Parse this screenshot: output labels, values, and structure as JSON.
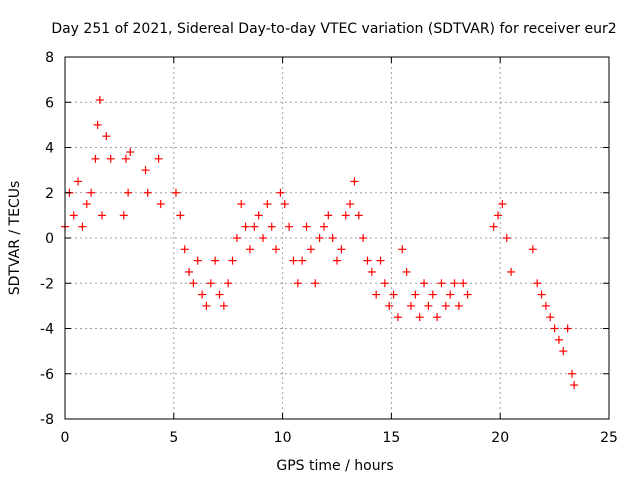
{
  "chart_data": {
    "type": "scatter",
    "title": "Day 251 of 2021, Sidereal Day-to-day VTEC variation (SDTVAR) for receiver eur2",
    "xlabel": "GPS time / hours",
    "ylabel": "SDTVAR / TECUs",
    "xlim": [
      0,
      25
    ],
    "ylim": [
      -8,
      8
    ],
    "xticks": [
      0,
      5,
      10,
      15,
      20,
      25
    ],
    "yticks": [
      -8,
      -6,
      -4,
      -2,
      0,
      2,
      4,
      6,
      8
    ],
    "grid": true,
    "marker": "+",
    "series": [
      {
        "name": "eur2",
        "color": "#ff0000",
        "x": [
          0.0,
          0.2,
          0.4,
          0.6,
          0.8,
          1.0,
          1.2,
          1.4,
          1.5,
          1.6,
          1.7,
          1.9,
          2.1,
          2.7,
          2.8,
          2.9,
          3.0,
          3.7,
          3.8,
          4.3,
          4.4,
          5.1,
          5.3,
          5.5,
          5.7,
          5.9,
          6.1,
          6.3,
          6.5,
          6.7,
          6.9,
          7.1,
          7.3,
          7.5,
          7.7,
          7.9,
          8.1,
          8.3,
          8.5,
          8.7,
          8.9,
          9.1,
          9.3,
          9.5,
          9.7,
          9.9,
          10.1,
          10.3,
          10.5,
          10.7,
          10.9,
          11.1,
          11.3,
          11.5,
          11.7,
          11.9,
          12.1,
          12.3,
          12.5,
          12.7,
          12.9,
          13.1,
          13.3,
          13.5,
          13.7,
          13.9,
          14.1,
          14.3,
          14.5,
          14.7,
          14.9,
          15.1,
          15.3,
          15.5,
          15.7,
          15.9,
          16.1,
          16.3,
          16.5,
          16.7,
          16.9,
          17.1,
          17.3,
          17.5,
          17.7,
          17.9,
          18.1,
          18.3,
          18.5,
          19.7,
          19.9,
          20.1,
          20.3,
          20.5,
          21.5,
          21.7,
          21.9,
          22.1,
          22.3,
          22.5,
          22.7,
          22.9,
          23.1,
          23.3,
          23.4
        ],
        "y": [
          0.5,
          2.0,
          1.0,
          2.5,
          0.5,
          1.5,
          2.0,
          3.5,
          5.0,
          6.1,
          1.0,
          4.5,
          3.5,
          1.0,
          3.5,
          2.0,
          3.8,
          3.0,
          2.0,
          3.5,
          1.5,
          2.0,
          1.0,
          -0.5,
          -1.5,
          -2.0,
          -1.0,
          -2.5,
          -3.0,
          -2.0,
          -1.0,
          -2.5,
          -3.0,
          -2.0,
          -1.0,
          0.0,
          1.5,
          0.5,
          -0.5,
          0.5,
          1.0,
          0.0,
          1.5,
          0.5,
          -0.5,
          2.0,
          1.5,
          0.5,
          -1.0,
          -2.0,
          -1.0,
          0.5,
          -0.5,
          -2.0,
          0.0,
          0.5,
          1.0,
          0.0,
          -1.0,
          -0.5,
          1.0,
          1.5,
          2.5,
          1.0,
          0.0,
          -1.0,
          -1.5,
          -2.5,
          -1.0,
          -2.0,
          -3.0,
          -2.5,
          -3.5,
          -0.5,
          -1.5,
          -3.0,
          -2.5,
          -3.5,
          -2.0,
          -3.0,
          -2.5,
          -3.5,
          -2.0,
          -3.0,
          -2.5,
          -2.0,
          -3.0,
          -2.0,
          -2.5,
          0.5,
          1.0,
          1.5,
          0.0,
          -1.5,
          -0.5,
          -2.0,
          -2.5,
          -3.0,
          -3.5,
          -4.0,
          -4.5,
          -5.0,
          -4.0,
          -6.0,
          -6.5
        ]
      }
    ]
  }
}
